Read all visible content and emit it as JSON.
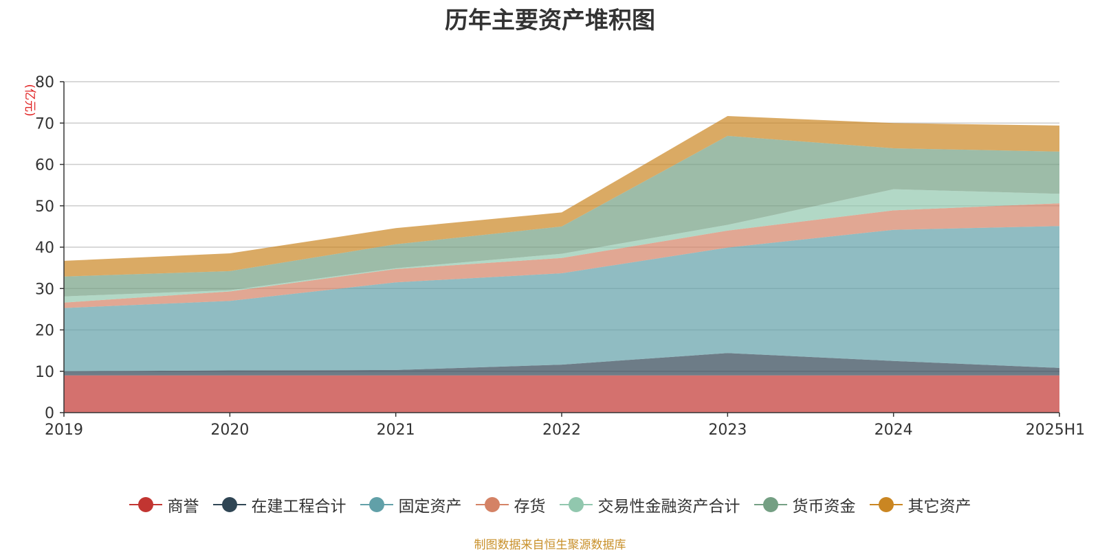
{
  "chart_data": {
    "type": "area",
    "stacked": true,
    "title": "历年主要资产堆积图",
    "ylabel": "(亿元)",
    "xlabel": "",
    "categories": [
      "2019",
      "2020",
      "2021",
      "2022",
      "2023",
      "2024",
      "2025H1"
    ],
    "ylim": [
      0,
      80
    ],
    "yticks": [
      0,
      10,
      20,
      30,
      40,
      50,
      60,
      70,
      80
    ],
    "grid": true,
    "legend_position": "bottom",
    "series": [
      {
        "name": "商誉",
        "color": "#c23531",
        "values": [
          9.0,
          9.0,
          9.0,
          9.0,
          9.0,
          9.0,
          9.0
        ]
      },
      {
        "name": "在建工程合计",
        "color": "#2f4554",
        "values": [
          1.0,
          1.2,
          1.3,
          2.6,
          5.4,
          3.5,
          1.8
        ]
      },
      {
        "name": "固定资产",
        "color": "#61a0a8",
        "values": [
          15.3,
          16.8,
          21.2,
          22.1,
          25.5,
          31.7,
          34.3
        ]
      },
      {
        "name": "存货",
        "color": "#d48265",
        "values": [
          1.3,
          2.3,
          3.2,
          3.7,
          4.1,
          4.7,
          5.5
        ]
      },
      {
        "name": "交易性金融资产合计",
        "color": "#91c7ae",
        "values": [
          1.5,
          0.3,
          0.2,
          1.0,
          1.4,
          5.1,
          2.3
        ]
      },
      {
        "name": "货币资金",
        "color": "#749f83",
        "values": [
          4.8,
          4.6,
          5.8,
          6.6,
          21.5,
          9.9,
          10.2
        ]
      },
      {
        "name": "其它资产",
        "color": "#ca8622",
        "values": [
          3.8,
          4.3,
          3.9,
          3.4,
          4.8,
          6.1,
          6.3
        ]
      }
    ]
  },
  "source": "制图数据来自恒生聚源数据库"
}
